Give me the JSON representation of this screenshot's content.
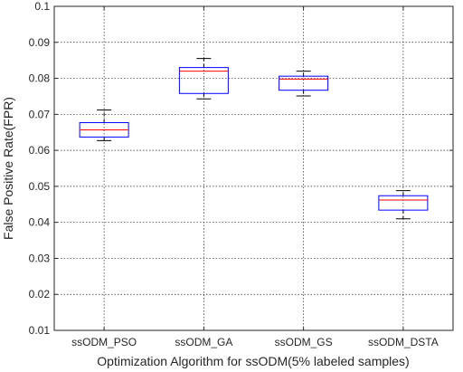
{
  "chart_data": {
    "type": "boxplot",
    "title": "",
    "xlabel": "Optimization Algorithm for ssODM(5% labeled samples)",
    "ylabel": "False Positive Rate(FPR)",
    "ylim": [
      0.01,
      0.1
    ],
    "yticks": [
      "0.01",
      "0.02",
      "0.03",
      "0.04",
      "0.05",
      "0.06",
      "0.07",
      "0.08",
      "0.09",
      "0.1"
    ],
    "grid": true,
    "categories": [
      "ssODM_PSO",
      "ssODM_GA",
      "ssODM_GS",
      "ssODM_DSTA"
    ],
    "boxes": [
      {
        "min": 0.0627,
        "q1": 0.0637,
        "median": 0.0657,
        "q3": 0.0677,
        "max": 0.0712
      },
      {
        "min": 0.0743,
        "q1": 0.0758,
        "median": 0.082,
        "q3": 0.083,
        "max": 0.0855
      },
      {
        "min": 0.0751,
        "q1": 0.0767,
        "median": 0.0798,
        "q3": 0.0806,
        "max": 0.082
      },
      {
        "min": 0.041,
        "q1": 0.0434,
        "median": 0.0462,
        "q3": 0.0474,
        "max": 0.0488
      }
    ],
    "colors": {
      "box": "#0000ff",
      "median": "#ff0000",
      "whisker": "#000000",
      "axis": "#262626"
    }
  }
}
